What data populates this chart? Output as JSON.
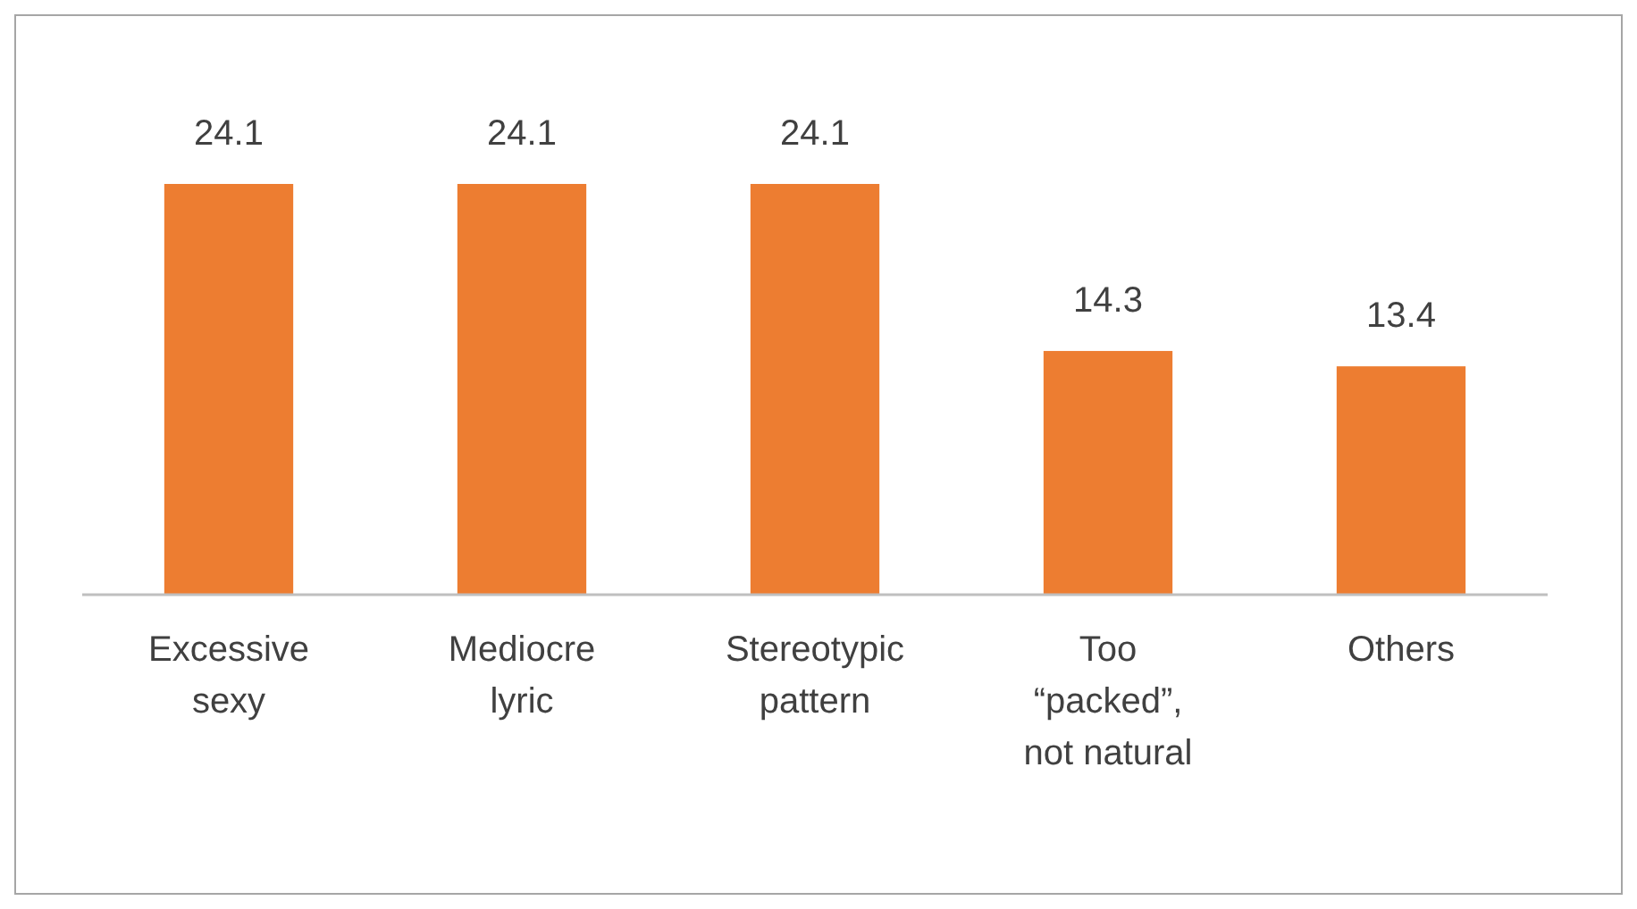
{
  "chart_data": {
    "type": "bar",
    "categories": [
      "Excessive sexy",
      "Mediocre lyric",
      "Stereotypic pattern",
      "Too “packed”, not natural",
      "Others"
    ],
    "values": [
      24.1,
      24.1,
      24.1,
      14.3,
      13.4
    ],
    "color": "#ed7d31",
    "data_labels": true
  }
}
